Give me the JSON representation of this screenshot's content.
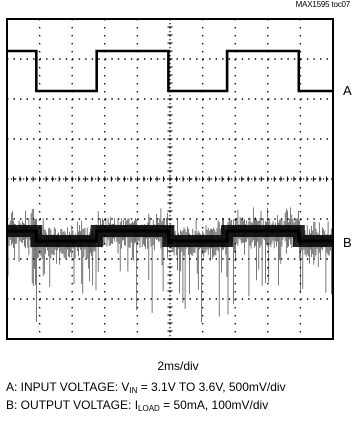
{
  "figure_tag": "MAX1595 toc07",
  "channel_labels": {
    "a": "A",
    "b": "B"
  },
  "timebase": "2ms/div",
  "caption_a": {
    "prefix": "A: INPUT VOLTAGE: V",
    "sub": "IN",
    "suffix": " = 3.1V TO 3.6V, 500mV/div"
  },
  "caption_b": {
    "prefix": "B: OUTPUT VOLTAGE: I",
    "sub": "LOAD",
    "suffix": " = 50mA, 100mV/div"
  },
  "colors": {
    "trace": "#000000",
    "grid": "#000000",
    "background": "#ffffff"
  },
  "chart_data": {
    "type": "line",
    "title": "",
    "xlabel": "2ms/div",
    "ylabel": "",
    "grid": true,
    "divisions": {
      "x": 10,
      "y": 8
    },
    "x_unit": "ms",
    "xlim": [
      0,
      20
    ],
    "series": [
      {
        "name": "A",
        "unit": "V",
        "levels": {
          "high": 3.6,
          "low": 3.1
        },
        "x": [
          0,
          1.8,
          1.8,
          5.5,
          5.5,
          9.9,
          9.9,
          13.5,
          13.5,
          17.9,
          17.9,
          20
        ],
        "values": [
          3.6,
          3.6,
          3.1,
          3.1,
          3.6,
          3.6,
          3.1,
          3.1,
          3.6,
          3.6,
          3.1,
          3.1
        ]
      },
      {
        "name": "B",
        "unit": "mV (AC coupled)",
        "x": [
          0,
          1.8,
          1.8,
          5.5,
          5.5,
          9.9,
          9.9,
          13.5,
          13.5,
          17.9,
          17.9,
          20
        ],
        "values": [
          25,
          25,
          0,
          0,
          25,
          25,
          0,
          0,
          25,
          25,
          0,
          0
        ],
        "noise": "±20mV band with negative spikes up to ~-110mV"
      }
    ]
  }
}
